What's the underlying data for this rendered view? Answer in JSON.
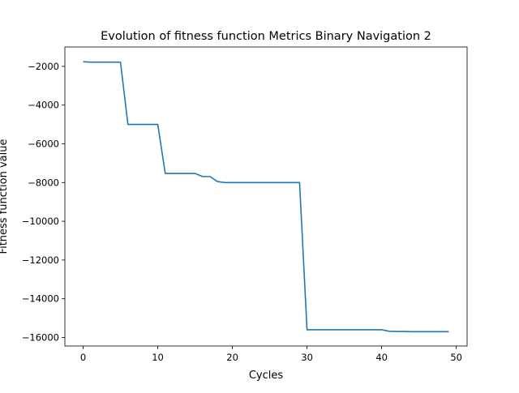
{
  "chart_data": {
    "type": "line",
    "title": "Evolution of fitness function Metrics Binary Navigation 2",
    "xlabel": "Cycles",
    "ylabel": "Fitness function value",
    "xlim": [
      -2.45,
      51.45
    ],
    "ylim": [
      -16440,
      -1000
    ],
    "xticks": [
      0,
      10,
      20,
      30,
      40,
      50
    ],
    "yticks": [
      -2000,
      -4000,
      -6000,
      -8000,
      -10000,
      -12000,
      -14000,
      -16000
    ],
    "xtick_labels": [
      "0",
      "10",
      "20",
      "30",
      "40",
      "50"
    ],
    "ytick_labels": [
      "−2000",
      "−4000",
      "−6000",
      "−8000",
      "−10000",
      "−12000",
      "−14000",
      "−16000"
    ],
    "grid": false,
    "line_color": "#1f77b4",
    "series": [
      {
        "x": [
          0,
          1,
          2,
          3,
          4,
          5,
          6,
          7,
          8,
          9,
          10,
          11,
          12,
          13,
          14,
          15,
          16,
          17,
          18,
          19,
          20,
          21,
          22,
          23,
          24,
          25,
          26,
          27,
          28,
          29,
          30,
          31,
          32,
          33,
          34,
          35,
          36,
          37,
          38,
          39,
          40,
          41,
          42,
          43,
          44,
          45,
          46,
          47,
          48,
          49
        ],
        "values": [
          -1760,
          -1780,
          -1780,
          -1780,
          -1780,
          -1780,
          -5000,
          -5000,
          -5000,
          -5000,
          -5000,
          -7530,
          -7530,
          -7530,
          -7530,
          -7530,
          -7690,
          -7690,
          -7950,
          -8000,
          -8000,
          -8000,
          -8000,
          -8000,
          -8000,
          -8000,
          -8000,
          -8000,
          -8000,
          -8000,
          -15600,
          -15600,
          -15600,
          -15600,
          -15600,
          -15600,
          -15600,
          -15600,
          -15600,
          -15600,
          -15600,
          -15680,
          -15690,
          -15690,
          -15700,
          -15700,
          -15700,
          -15700,
          -15700,
          -15700
        ]
      }
    ]
  }
}
